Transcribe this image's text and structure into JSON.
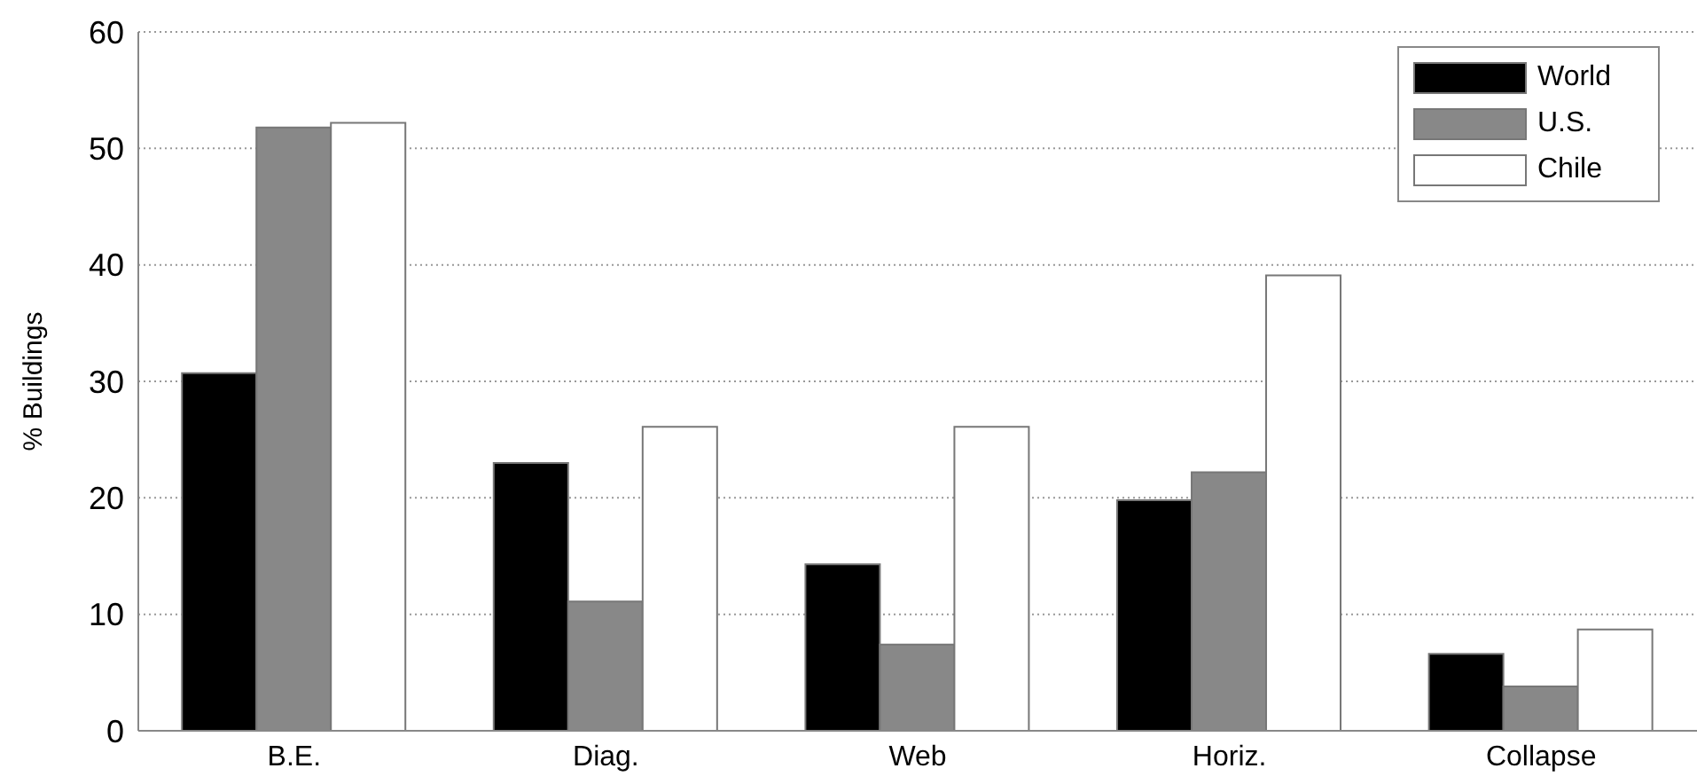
{
  "chart_data": {
    "type": "bar",
    "ylabel": "% Buildings",
    "categories": [
      "B.E.",
      "Diag.",
      "Web",
      "Horiz.",
      "Collapse"
    ],
    "series": [
      {
        "name": "World",
        "color": "#000000",
        "values": [
          30.7,
          23,
          14.3,
          19.8,
          6.6
        ]
      },
      {
        "name": "U.S.",
        "color": "#888888",
        "values": [
          51.8,
          11.1,
          7.4,
          22.2,
          3.8
        ]
      },
      {
        "name": "Chile",
        "color": "#ffffff",
        "values": [
          52.2,
          26.1,
          26.1,
          39.1,
          8.7
        ]
      }
    ],
    "ylim": [
      0,
      60
    ],
    "yticks": [
      0,
      10,
      20,
      30,
      40,
      50,
      60
    ],
    "grid": "y",
    "legend": "top right"
  }
}
